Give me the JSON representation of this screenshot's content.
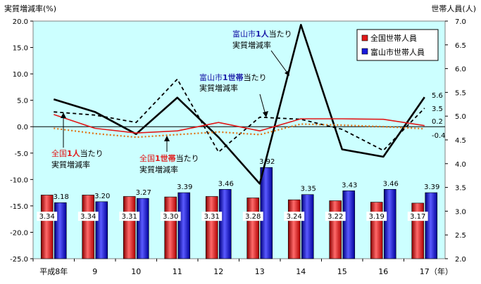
{
  "chart_data": {
    "type": "bar",
    "left_axis_label": "実質増減率(%)",
    "right_axis_label": "世帯人員(人)",
    "categories": [
      "平成8年",
      "9",
      "10",
      "11",
      "12",
      "13",
      "14",
      "15",
      "16",
      "17"
    ],
    "x_unit": "（年）",
    "left_axis": {
      "min": -25,
      "max": 20,
      "step": 5,
      "ticks": [
        "20.0",
        "15.0",
        "10.0",
        "5.0",
        "0.0",
        "-5.0",
        "-10.0",
        "-15.0",
        "-20.0",
        "-25.0"
      ]
    },
    "right_axis": {
      "min": 2.0,
      "max": 7.0,
      "step": 0.5,
      "ticks": [
        "7.0",
        "6.5",
        "6.0",
        "5.5",
        "5.0",
        "4.5",
        "4.0",
        "3.5",
        "3.0",
        "2.5",
        "2.0"
      ]
    },
    "bar_series": [
      {
        "name": "全国世帯人員",
        "color": "#e11919",
        "values": [
          3.34,
          3.34,
          3.31,
          3.3,
          3.31,
          3.28,
          3.24,
          3.22,
          3.19,
          3.17
        ],
        "labels": [
          "3.34",
          "3.34",
          "3.31",
          "3.30",
          "3.31",
          "3.28",
          "3.24",
          "3.22",
          "3.19",
          "3.17"
        ]
      },
      {
        "name": "富山市世帯人員",
        "color": "#1a1adc",
        "values": [
          3.18,
          3.2,
          3.27,
          3.39,
          3.46,
          3.92,
          3.35,
          3.43,
          3.46,
          3.39
        ],
        "labels": [
          "3.18",
          "3.20",
          "3.27",
          "3.39",
          "3.46",
          "3.92",
          "3.35",
          "3.43",
          "3.46",
          "3.39"
        ]
      }
    ],
    "line_series": [
      {
        "key": "toyama_person",
        "style": "solid",
        "color": "#000000",
        "values": [
          5.2,
          2.8,
          -1.4,
          5.5,
          -2.0,
          -10.8,
          19.3,
          -4.3,
          -5.7,
          5.6
        ]
      },
      {
        "key": "toyama_household",
        "style": "dashed",
        "color": "#000000",
        "values": [
          2.8,
          2.2,
          0.8,
          9.0,
          -4.8,
          1.8,
          1.4,
          -0.5,
          -4.5,
          3.5
        ]
      },
      {
        "key": "national_person",
        "style": "solid",
        "color": "#e11919",
        "values": [
          2.3,
          -0.3,
          -1.2,
          -0.8,
          0.8,
          -0.8,
          1.5,
          1.5,
          1.4,
          0.2
        ]
      },
      {
        "key": "national_household",
        "style": "dotted",
        "color": "#e07010",
        "values": [
          -0.3,
          -1.3,
          -2.0,
          -1.5,
          -1.0,
          -1.5,
          0.5,
          0.3,
          0.0,
          -0.4
        ]
      }
    ],
    "end_labels": [
      "5.6",
      "3.5",
      "0.2",
      "-0.4"
    ],
    "annotations": [
      {
        "text1a": "全国",
        "text1b": "1人",
        "text1c": "当たり",
        "text2": "実質増減率",
        "color": "#e11919"
      },
      {
        "text1a": "全国",
        "text1b": "1世帯",
        "text1c": "当たり",
        "text2": "実質増減率",
        "color": "#e11919"
      },
      {
        "text1a": "富山市",
        "text1b": "1人",
        "text1c": "当たり",
        "text2": "実質増減率",
        "color": "#1a1aa8"
      },
      {
        "text1a": "富山市",
        "text1b": "1世帯",
        "text1c": "当たり",
        "text2": "実質増減率",
        "color": "#1a1aa8"
      }
    ],
    "legend_placement": "top-right",
    "plot_background": "#ccffff",
    "grid": false
  }
}
